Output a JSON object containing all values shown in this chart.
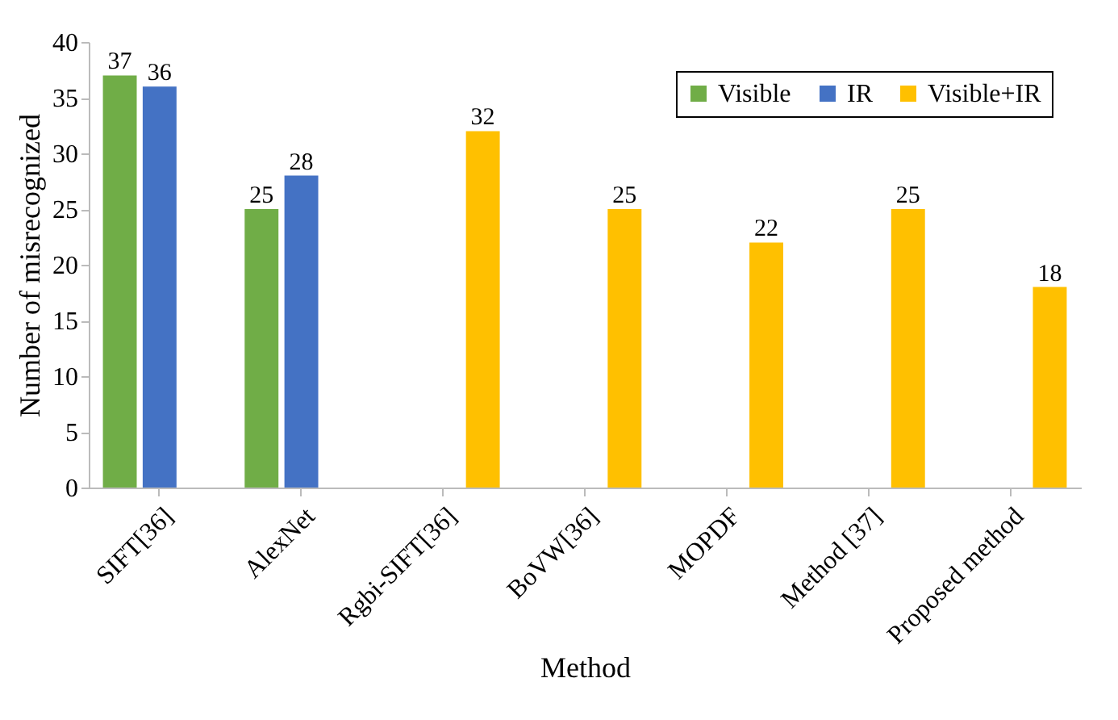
{
  "chart_data": {
    "type": "bar",
    "xlabel": "Method",
    "ylabel": "Number of misrecognized",
    "categories": [
      "SIFT[36]",
      "AlexNet",
      "Rgbi-SIFT[36]",
      "BoVW[36]",
      "MOPDF",
      "Method [37]",
      "Proposed method"
    ],
    "series": [
      {
        "name": "Visible",
        "color": "#70ad47",
        "values": [
          37,
          25,
          null,
          null,
          null,
          null,
          null
        ]
      },
      {
        "name": "IR",
        "color": "#4472c4",
        "values": [
          36,
          28,
          null,
          null,
          null,
          null,
          null
        ]
      },
      {
        "name": "Visible+IR",
        "color": "#ffc000",
        "values": [
          null,
          null,
          32,
          25,
          22,
          25,
          18
        ]
      }
    ],
    "ylim": [
      0,
      40
    ],
    "yticks": [
      0,
      5,
      10,
      15,
      20,
      25,
      30,
      35,
      40
    ],
    "data_labels": true,
    "legend": "top right"
  }
}
